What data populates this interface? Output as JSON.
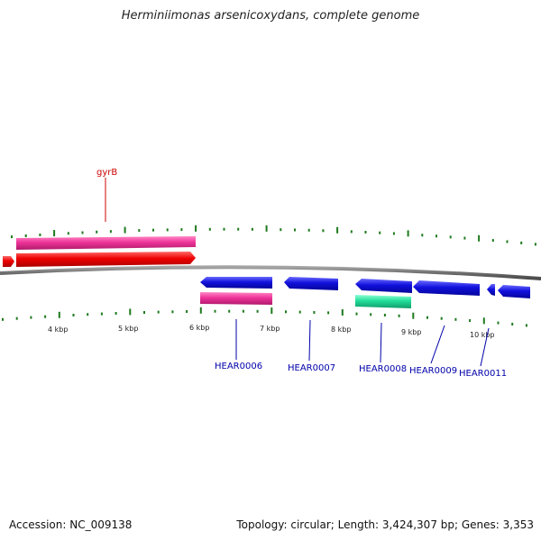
{
  "header": {
    "title": "Herminiimonas arsenicoxydans, complete genome"
  },
  "footer": {
    "accession": "Accession: NC_009138",
    "summary": "Topology: circular; Length: 3,424,307 bp; Genes: 3,353"
  },
  "colors": {
    "backbone": "#6f6f6f",
    "tick": "#1f7a1f",
    "cds_red": "#ee0000",
    "cds_pink": "#ee3399",
    "cds_blue": "#1111dd",
    "cds_green": "#22dd99",
    "label_red": "#cc0000",
    "label_blue": "#0000aa"
  },
  "scale": {
    "ticks": [
      {
        "label": "4 kbp"
      },
      {
        "label": "5 kbp"
      },
      {
        "label": "6 kbp"
      },
      {
        "label": "7 kbp"
      },
      {
        "label": "8 kbp"
      },
      {
        "label": "9 kbp"
      },
      {
        "label": "10 kbp"
      }
    ]
  },
  "genes": {
    "labels": [
      {
        "name": "gyrB"
      },
      {
        "name": "HEAR0006"
      },
      {
        "name": "HEAR0007"
      },
      {
        "name": "HEAR0008"
      },
      {
        "name": "HEAR0009"
      },
      {
        "name": "HEAR0011"
      }
    ]
  }
}
